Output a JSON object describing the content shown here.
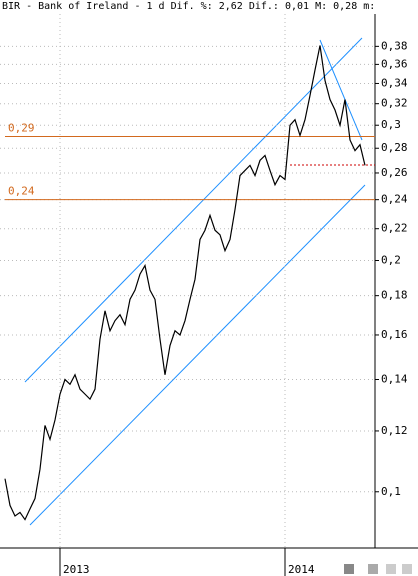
{
  "chart_data": {
    "type": "line",
    "title": "BIR - Bank of Ireland - 1 d Dif. %: 2,62 Dif.: 0,01 M: 0,28 m:",
    "categories": [
      null,
      null,
      null,
      null,
      null,
      null,
      null,
      null,
      null,
      null,
      null,
      "2013",
      null,
      null,
      null,
      null,
      null,
      null,
      null,
      null,
      null,
      null,
      null,
      null,
      null,
      null,
      null,
      null,
      null,
      null,
      null,
      null,
      null,
      null,
      null,
      null,
      null,
      null,
      null,
      null,
      null,
      null,
      null,
      null,
      null,
      null,
      null,
      null,
      null,
      null,
      null,
      null,
      null,
      null,
      null,
      null,
      "2014",
      null,
      null,
      null,
      null,
      null,
      null,
      null,
      null,
      null,
      null,
      null,
      null,
      null,
      null,
      null,
      null
    ],
    "values": [
      0.104,
      0.096,
      0.093,
      0.094,
      0.092,
      0.095,
      0.098,
      0.107,
      0.122,
      0.117,
      0.124,
      0.134,
      0.14,
      0.138,
      0.142,
      0.136,
      0.134,
      0.132,
      0.136,
      0.158,
      0.172,
      0.162,
      0.167,
      0.17,
      0.165,
      0.178,
      0.183,
      0.192,
      0.197,
      0.183,
      0.178,
      0.158,
      0.142,
      0.155,
      0.162,
      0.16,
      0.167,
      0.178,
      0.189,
      0.213,
      0.219,
      0.229,
      0.219,
      0.216,
      0.206,
      0.213,
      0.233,
      0.258,
      0.262,
      0.266,
      0.258,
      0.27,
      0.274,
      0.262,
      0.251,
      0.258,
      0.255,
      0.3,
      0.305,
      0.291,
      0.305,
      0.328,
      0.354,
      0.381,
      0.343,
      0.324,
      0.314,
      0.3,
      0.324,
      0.287,
      0.278,
      0.283,
      0.266
    ],
    "color": "#000000",
    "log_scale": true,
    "grid": true,
    "ylim": [
      0.085,
      0.41
    ],
    "yticks": [
      {
        "value": 0.1,
        "label": "0,1"
      },
      {
        "value": 0.12,
        "label": "0,12"
      },
      {
        "value": 0.14,
        "label": "0,14"
      },
      {
        "value": 0.16,
        "label": "0,16"
      },
      {
        "value": 0.18,
        "label": "0,18"
      },
      {
        "value": 0.2,
        "label": "0,2"
      },
      {
        "value": 0.22,
        "label": "0,22"
      },
      {
        "value": 0.24,
        "label": "0,24"
      },
      {
        "value": 0.26,
        "label": "0,26"
      },
      {
        "value": 0.28,
        "label": "0,28"
      },
      {
        "value": 0.3,
        "label": "0,3"
      },
      {
        "value": 0.32,
        "label": "0,32"
      },
      {
        "value": 0.34,
        "label": "0,34"
      },
      {
        "value": 0.36,
        "label": "0,36"
      },
      {
        "value": 0.38,
        "label": "0,38"
      }
    ],
    "hlines": [
      {
        "value": 0.29,
        "label": "0,29",
        "color": "#d2691e"
      },
      {
        "value": 0.24,
        "label": "0,24",
        "color": "#d2691e"
      }
    ]
  }
}
